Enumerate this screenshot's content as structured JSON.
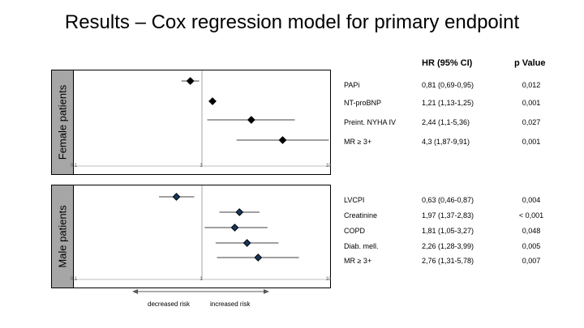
{
  "title": "Results – Cox regression model for primary endpoint",
  "headers": {
    "hr": "HR (95% CI)",
    "p": "p Value"
  },
  "panels": {
    "female": {
      "label": "Female patients",
      "ticks": [
        "0,1",
        "1",
        "10"
      ]
    },
    "male": {
      "label": "Male patients",
      "ticks": [
        "0,1",
        "1",
        "10"
      ]
    }
  },
  "risk": {
    "decreased": "decreased risk",
    "increased": "increased risk"
  },
  "chart_data": {
    "type": "forest",
    "x_scale": "log10",
    "xlim": [
      0.1,
      10
    ],
    "reference_line": 1,
    "groups": [
      {
        "name": "Female patients",
        "rows": [
          {
            "label": "PAPi",
            "hr": 0.81,
            "lo": 0.69,
            "hi": 0.95,
            "ci_text": "0,81 (0,69-0,95)",
            "p": "0,012"
          },
          {
            "label": "NT-proBNP",
            "hr": 1.21,
            "lo": 1.13,
            "hi": 1.25,
            "ci_text": "1,21 (1,13-1,25)",
            "p": "0,001"
          },
          {
            "label": "Preint. NYHA IV",
            "hr": 2.44,
            "lo": 1.1,
            "hi": 5.36,
            "ci_text": "2,44 (1,1-5,36)",
            "p": "0,027"
          },
          {
            "label": "MR ≥ 3+",
            "hr": 4.3,
            "lo": 1.87,
            "hi": 9.91,
            "ci_text": "4,3 (1,87-9,91)",
            "p": "0,001"
          }
        ]
      },
      {
        "name": "Male patients",
        "rows": [
          {
            "label": "LVCPI",
            "hr": 0.63,
            "lo": 0.46,
            "hi": 0.87,
            "ci_text": "0,63 (0,46-0,87)",
            "p": "0,004"
          },
          {
            "label": "Creatinine",
            "hr": 1.97,
            "lo": 1.37,
            "hi": 2.83,
            "ci_text": "1,97 (1,37-2,83)",
            "p": "< 0,001"
          },
          {
            "label": "COPD",
            "hr": 1.81,
            "lo": 1.05,
            "hi": 3.27,
            "ci_text": "1,81 (1,05-3,27)",
            "p": "0,048"
          },
          {
            "label": "Diab. mell.",
            "hr": 2.26,
            "lo": 1.28,
            "hi": 3.99,
            "ci_text": "2,26 (1,28-3,99)",
            "p": "0,005"
          },
          {
            "label": "MR ≥ 3+",
            "hr": 2.76,
            "lo": 1.31,
            "hi": 5.78,
            "ci_text": "2,76 (1,31-5,78)",
            "p": "0,007"
          }
        ]
      }
    ],
    "colors": {
      "female_marker": "#000000",
      "male_marker": "#17375e",
      "male_marker_edge": "#000000",
      "whisker": "#404040",
      "ref_line": "#a6a6a6"
    }
  }
}
